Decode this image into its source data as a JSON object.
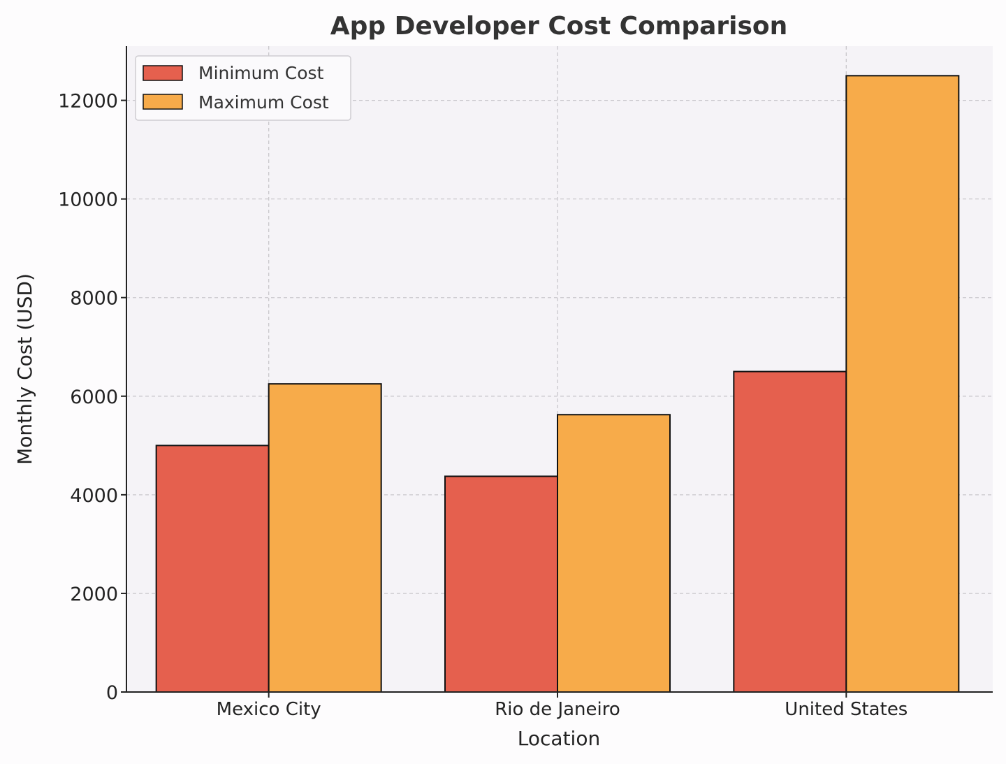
{
  "chart_data": {
    "type": "bar",
    "title": "App Developer Cost Comparison",
    "xlabel": "Location",
    "ylabel": "Monthly Cost (USD)",
    "categories": [
      "Mexico City",
      "Rio de Janeiro",
      "United States"
    ],
    "series": [
      {
        "name": "Minimum Cost",
        "values": [
          5000,
          4375,
          6500
        ],
        "color": "#e5604e"
      },
      {
        "name": "Maximum Cost",
        "values": [
          6250,
          5625,
          12500
        ],
        "color": "#f7ab4a"
      }
    ],
    "ylim": [
      0,
      13100
    ],
    "yticks": [
      0,
      2000,
      4000,
      6000,
      8000,
      10000,
      12000
    ],
    "grid": true,
    "legend_position": "top-left"
  }
}
